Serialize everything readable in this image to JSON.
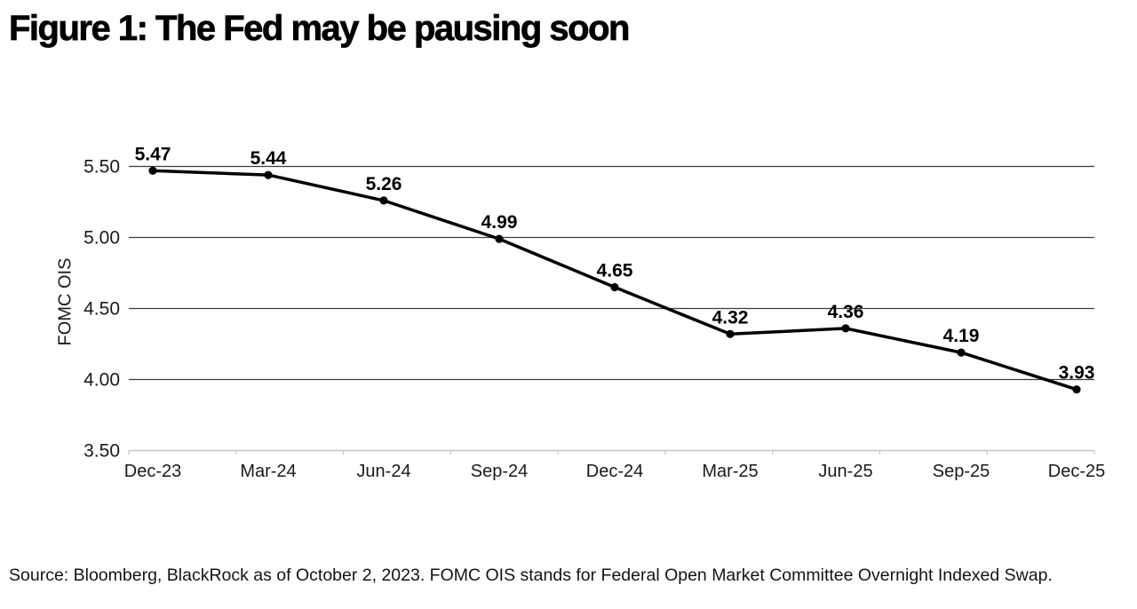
{
  "title": "Figure 1: The Fed may be pausing soon",
  "source": "Source: Bloomberg, BlackRock as of October 2, 2023. FOMC OIS stands for Federal Open Market Committee Overnight Indexed Swap.",
  "chart_data": {
    "type": "line",
    "title": "Figure 1: The Fed may be pausing soon",
    "categories": [
      "Dec-23",
      "Mar-24",
      "Jun-24",
      "Sep-24",
      "Dec-24",
      "Mar-25",
      "Jun-25",
      "Sep-25",
      "Dec-25"
    ],
    "series": [
      {
        "name": "FOMC OIS",
        "values": [
          5.47,
          5.44,
          5.26,
          4.99,
          4.65,
          4.32,
          4.36,
          4.19,
          3.93
        ]
      }
    ],
    "xlabel": "",
    "ylabel": "FOMC OIS",
    "ylim": [
      3.5,
      5.5
    ],
    "yticks": [
      5.5,
      5.0,
      4.5,
      4.0,
      3.5
    ],
    "grid": true,
    "data_labels": true,
    "legend": "none",
    "line_color": "#000000",
    "marker_color": "#000000",
    "grid_color": "#3d3d3d",
    "axis_color": "#c7c7c7",
    "text_color": "#1a1a1a",
    "label_color": "#000000"
  }
}
